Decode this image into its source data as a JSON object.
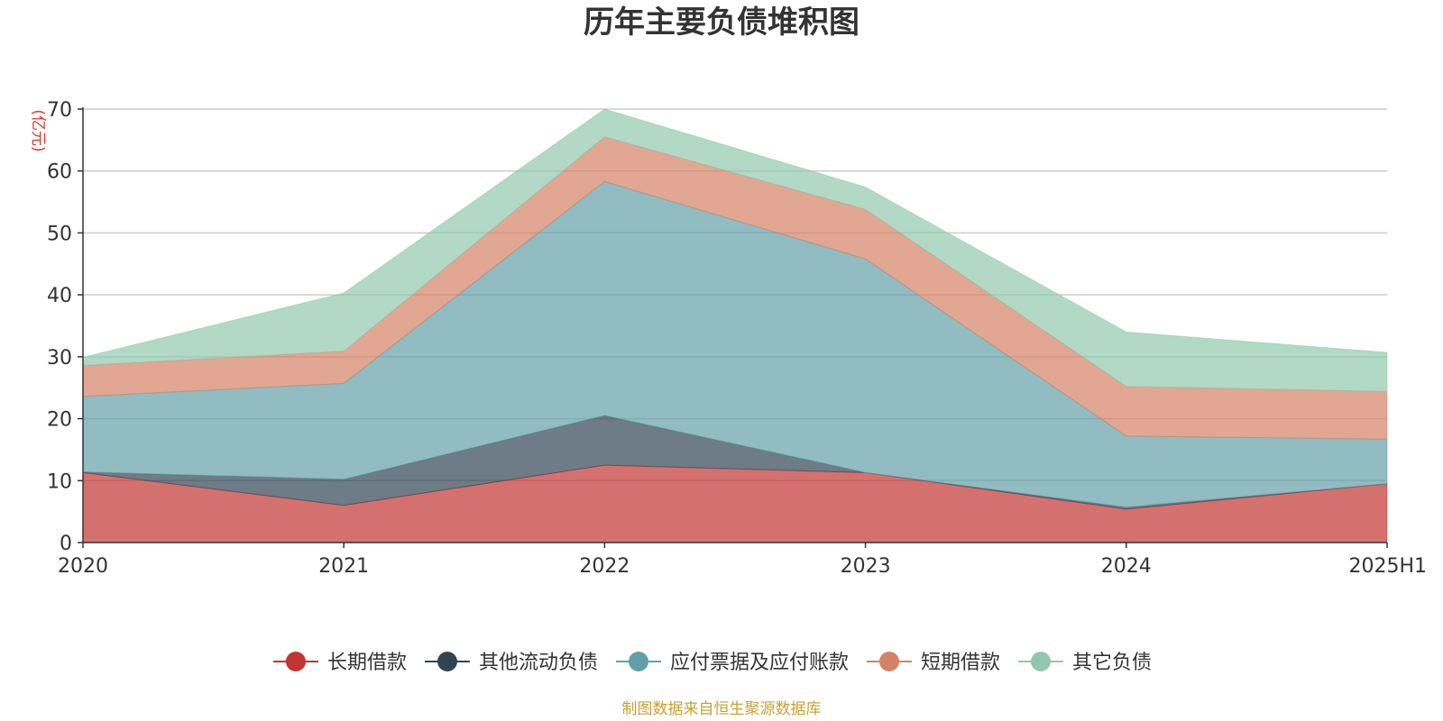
{
  "chart_data": {
    "type": "area",
    "stacked": true,
    "title": "历年主要负债堆积图",
    "unit_label": "(亿元)",
    "categories": [
      "2020",
      "2021",
      "2022",
      "2023",
      "2024",
      "2025H1"
    ],
    "ylim": [
      0,
      70
    ],
    "yticks": [
      0,
      10,
      20,
      30,
      40,
      50,
      60,
      70
    ],
    "grid": true,
    "legend_position": "bottom",
    "series": [
      {
        "name": "长期借款",
        "color": "#c23531",
        "values": [
          11.3,
          6.0,
          12.5,
          11.3,
          5.4,
          9.5
        ]
      },
      {
        "name": "其他流动负债",
        "color": "#2f4554",
        "values": [
          0.1,
          4.2,
          8.0,
          0.0,
          0.3,
          0.0
        ]
      },
      {
        "name": "应付票据及应付账款",
        "color": "#61a0a8",
        "values": [
          12.2,
          15.5,
          37.8,
          34.5,
          11.5,
          7.2
        ]
      },
      {
        "name": "短期借款",
        "color": "#d48265",
        "values": [
          5.0,
          5.2,
          7.2,
          8.0,
          8.0,
          7.7
        ]
      },
      {
        "name": "其它负债",
        "color": "#91c7ae",
        "values": [
          1.3,
          9.4,
          4.5,
          3.6,
          8.8,
          6.3
        ]
      }
    ]
  },
  "footer": {
    "source": "制图数据来自恒生聚源数据库"
  }
}
